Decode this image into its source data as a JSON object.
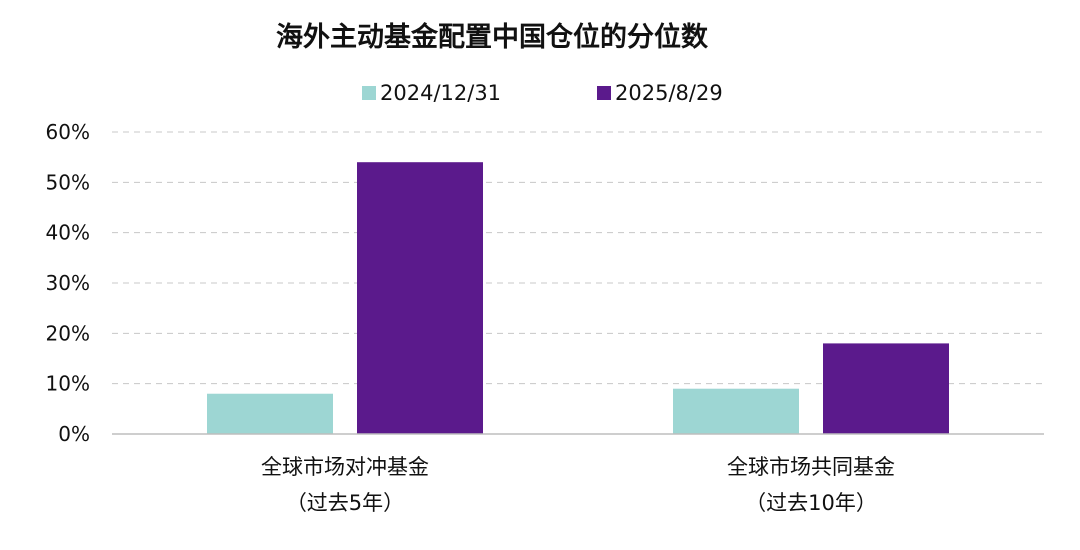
{
  "chart_data": {
    "type": "bar",
    "title": "海外主动基金配置中国仓位的分位数",
    "categories": [
      [
        "全球市场对冲基金",
        "（过去5年）"
      ],
      [
        "全球市场共同基金",
        "（过去10年）"
      ]
    ],
    "series": [
      {
        "name": "2024/12/31",
        "values": [
          8,
          9
        ],
        "color": "#9dd6d3"
      },
      {
        "name": "2025/8/29",
        "values": [
          54,
          18
        ],
        "color": "#5b1a8c"
      }
    ],
    "y_ticks": [
      "0%",
      "10%",
      "20%",
      "30%",
      "40%",
      "50%",
      "60%"
    ],
    "ylim": [
      0,
      60
    ],
    "unit": "%",
    "grid": true,
    "legend_position": "top-center"
  }
}
